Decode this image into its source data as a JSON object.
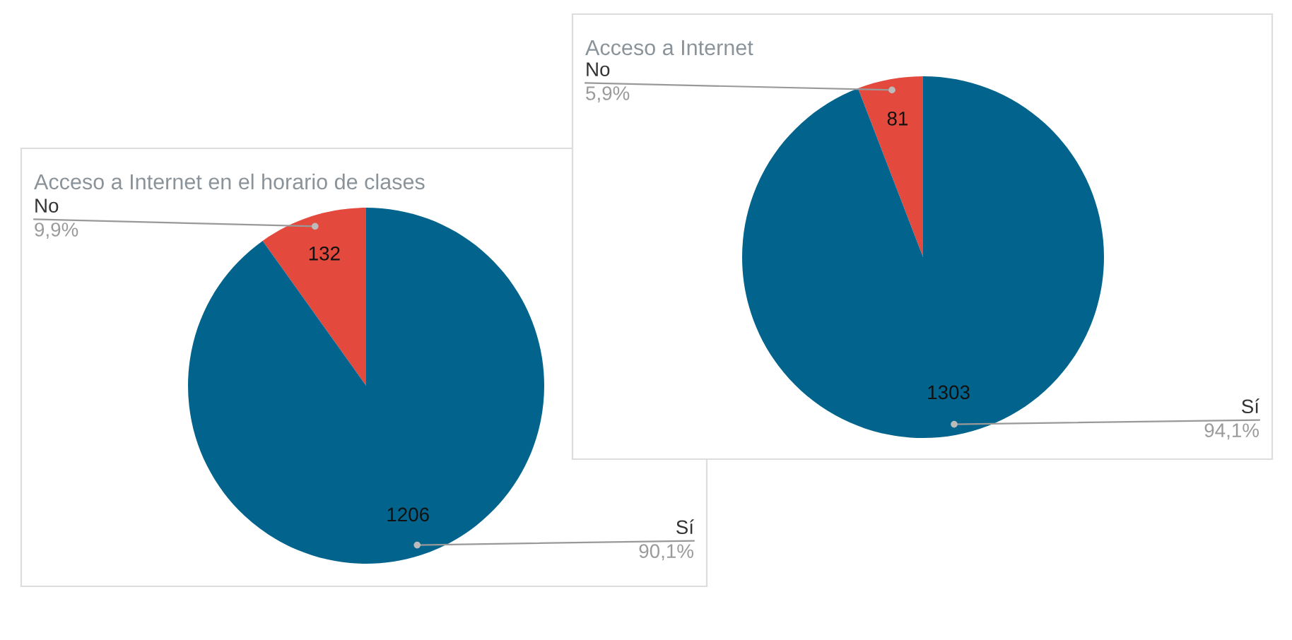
{
  "chart_data": [
    {
      "type": "pie",
      "title": "Acceso a Internet en el horario de clases",
      "categories": [
        "No",
        "Sí"
      ],
      "values": [
        132,
        1206
      ],
      "colors": [
        "#e4493d",
        "#02648c"
      ],
      "data_labels": true,
      "annotations": [
        "9,9%",
        "90,1%"
      ]
    },
    {
      "type": "pie",
      "title": "Acceso a Internet",
      "categories": [
        "No",
        "Sí"
      ],
      "values": [
        81,
        1303
      ],
      "colors": [
        "#e4493d",
        "#02648c"
      ],
      "data_labels": true,
      "annotations": [
        "5,9%",
        "94,1%"
      ]
    }
  ]
}
